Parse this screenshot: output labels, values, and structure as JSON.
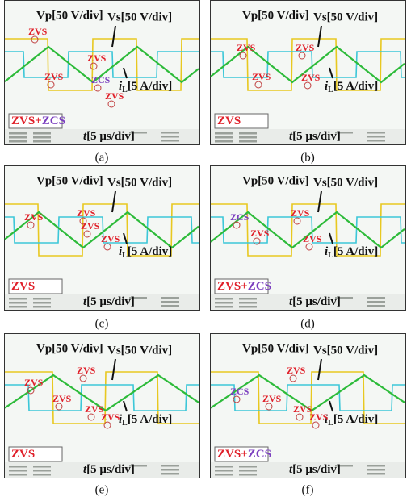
{
  "panels": [
    {
      "caption": "(a)",
      "vp_label": "Vp[50 V/div]",
      "vs_label": "Vs[50 V/div]",
      "il_symbol": "i",
      "il_subscript": "L",
      "il_label": "[5 A/div]",
      "time_symbol": "t",
      "time_label": "[5 μs/div]",
      "mode": [
        {
          "text": "ZVS+",
          "color": "#e0202a"
        },
        {
          "text": "ZCS",
          "color": "#7b3fbf"
        }
      ],
      "annotations": [
        {
          "text": "ZVS",
          "color": "#e0202a"
        },
        {
          "text": "ZVS",
          "color": "#e0202a"
        },
        {
          "text": "ZVS",
          "color": "#e0202a"
        },
        {
          "text": "ZCS",
          "color": "#7b3fbf"
        },
        {
          "text": "ZVS",
          "color": "#e0202a"
        }
      ]
    },
    {
      "caption": "(b)",
      "vp_label": "Vp[50 V/div]",
      "vs_label": "Vs[50 V/div]",
      "il_symbol": "i",
      "il_subscript": "L",
      "il_label": "[5 A/div]",
      "time_symbol": "t",
      "time_label": "[5 μs/div]",
      "mode": [
        {
          "text": "ZVS",
          "color": "#e0202a"
        }
      ],
      "annotations": [
        {
          "text": "ZVS",
          "color": "#e0202a"
        },
        {
          "text": "ZVS",
          "color": "#e0202a"
        },
        {
          "text": "ZVS",
          "color": "#e0202a"
        },
        {
          "text": "ZVS",
          "color": "#e0202a"
        }
      ]
    },
    {
      "caption": "(c)",
      "vp_label": "Vp[50 V/div]",
      "vs_label": "Vs[50 V/div]",
      "il_symbol": "i",
      "il_subscript": "L",
      "il_label": "[5 A/div]",
      "time_symbol": "t",
      "time_label": "[5 μs/div]",
      "mode": [
        {
          "text": "ZVS",
          "color": "#e0202a"
        }
      ],
      "annotations": [
        {
          "text": "ZVS",
          "color": "#e0202a"
        },
        {
          "text": "ZVS",
          "color": "#e0202a"
        },
        {
          "text": "ZVS",
          "color": "#e0202a"
        },
        {
          "text": "ZVS",
          "color": "#e0202a"
        }
      ]
    },
    {
      "caption": "(d)",
      "vp_label": "Vp[50 V/div]",
      "vs_label": "Vs[50 V/div]",
      "il_symbol": "i",
      "il_subscript": "L",
      "il_label": "[5 A/div]",
      "time_symbol": "t",
      "time_label": "[5 μs/div]",
      "mode": [
        {
          "text": "ZVS+",
          "color": "#e0202a"
        },
        {
          "text": "ZCS",
          "color": "#7b3fbf"
        }
      ],
      "annotations": [
        {
          "text": "ZCS",
          "color": "#7b3fbf"
        },
        {
          "text": "ZVS",
          "color": "#e0202a"
        },
        {
          "text": "ZVS",
          "color": "#e0202a"
        },
        {
          "text": "ZVS",
          "color": "#e0202a"
        }
      ]
    },
    {
      "caption": "(e)",
      "vp_label": "Vp[50 V/div]",
      "vs_label": "Vs[50 V/div]",
      "il_symbol": "i",
      "il_subscript": "L",
      "il_label": "[5 A/div]",
      "time_symbol": "t",
      "time_label": "[5 μs/div]",
      "mode": [
        {
          "text": "ZVS",
          "color": "#e0202a"
        }
      ],
      "annotations": [
        {
          "text": "ZVS",
          "color": "#e0202a"
        },
        {
          "text": "ZVS",
          "color": "#e0202a"
        },
        {
          "text": "ZVS",
          "color": "#e0202a"
        },
        {
          "text": "ZVS",
          "color": "#e0202a"
        },
        {
          "text": "ZVS",
          "color": "#e0202a"
        }
      ]
    },
    {
      "caption": "(f)",
      "vp_label": "Vp[50 V/div]",
      "vs_label": "Vs[50 V/div]",
      "il_symbol": "i",
      "il_subscript": "L",
      "il_label": "[5 A/div]",
      "time_symbol": "t",
      "time_label": "[5 μs/div]",
      "mode": [
        {
          "text": "ZVS+",
          "color": "#e0202a"
        },
        {
          "text": "ZCS",
          "color": "#7b3fbf"
        }
      ],
      "annotations": [
        {
          "text": "ZCS",
          "color": "#7b3fbf"
        },
        {
          "text": "ZVS",
          "color": "#e0202a"
        },
        {
          "text": "ZVS",
          "color": "#e0202a"
        },
        {
          "text": "ZVS",
          "color": "#e0202a"
        },
        {
          "text": "ZVS",
          "color": "#e0202a"
        }
      ]
    }
  ]
}
